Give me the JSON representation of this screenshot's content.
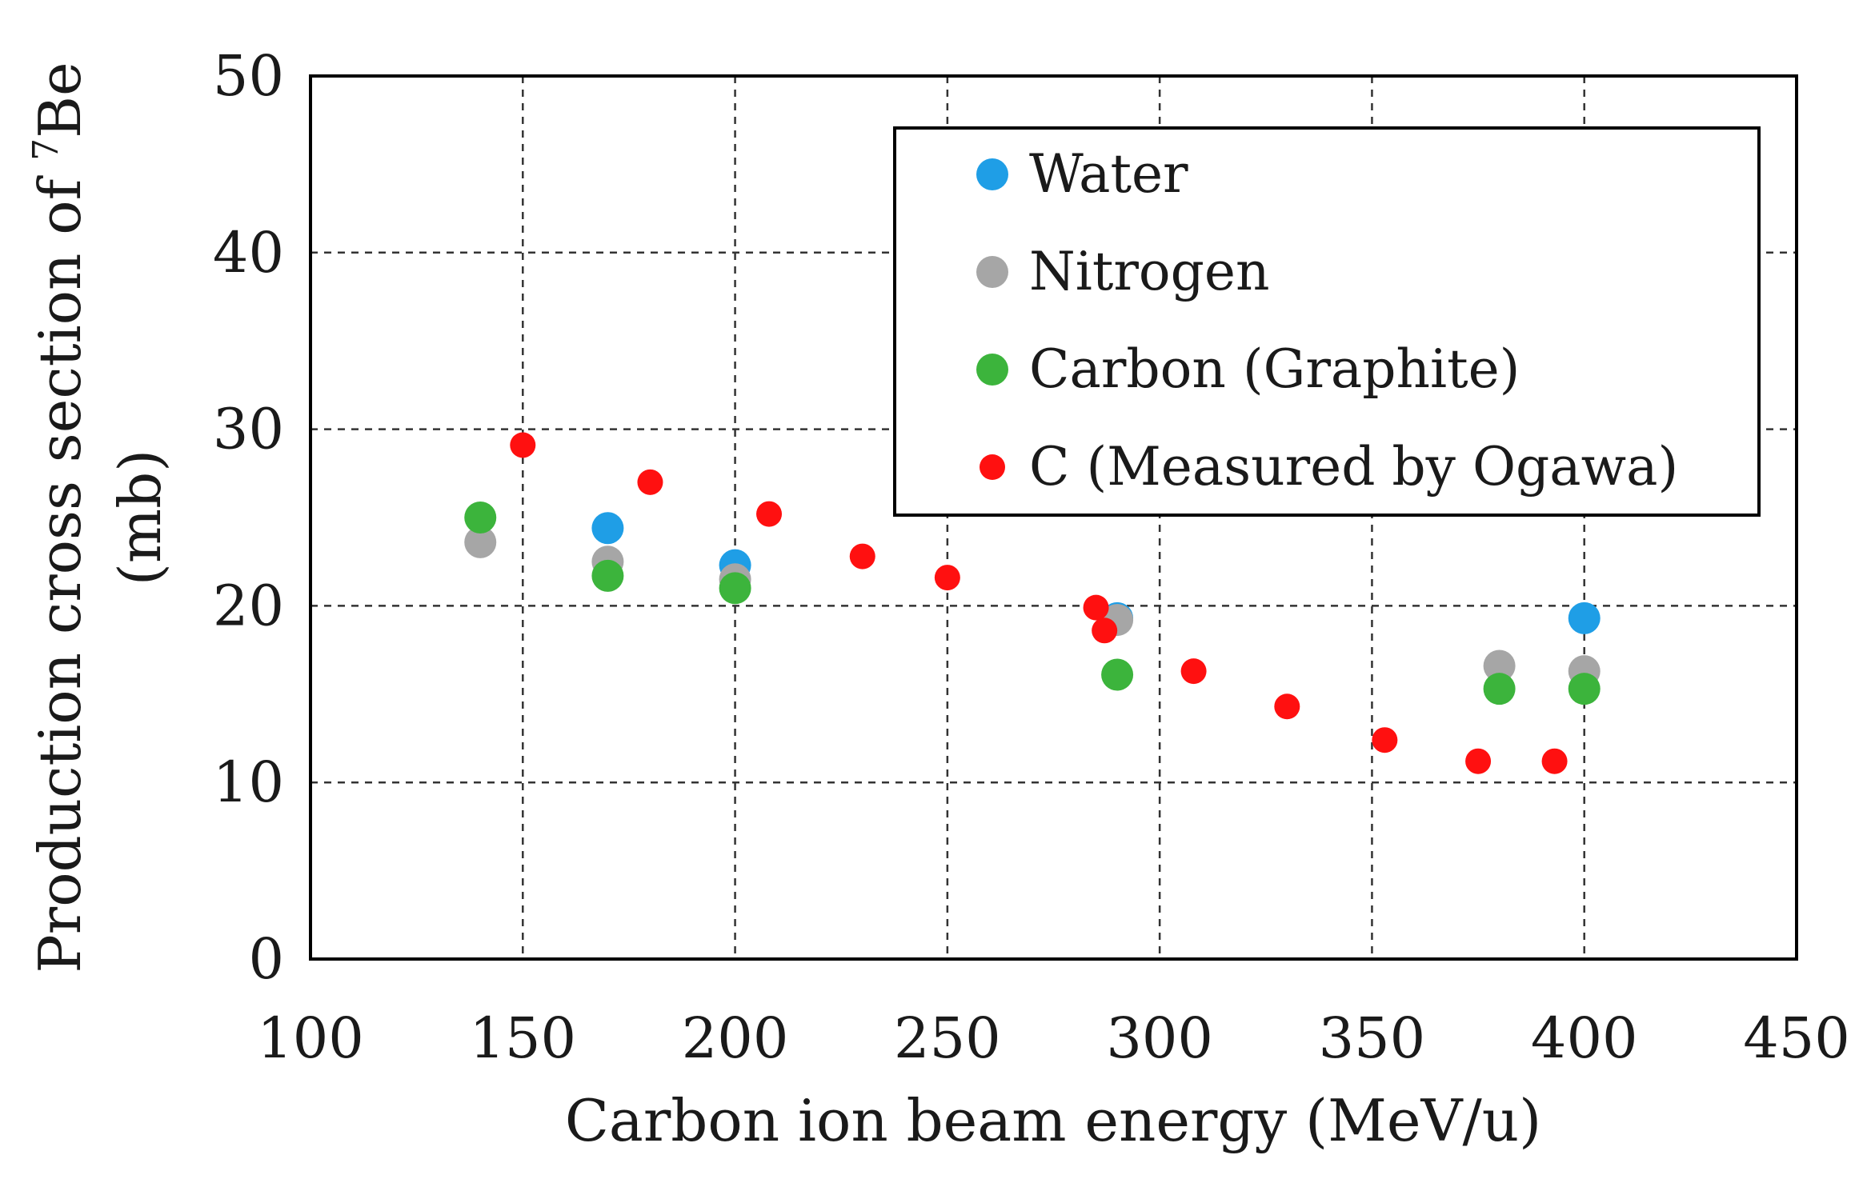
{
  "chart_data": {
    "type": "scatter",
    "title": "",
    "xlabel": "Carbon ion beam energy (MeV/u)",
    "ylabel_line1_prefix": "Production cross section of ",
    "ylabel_line1_sup": "7",
    "ylabel_line1_suffix": "Be",
    "ylabel_line2": "(mb)",
    "xlim": [
      100,
      450
    ],
    "ylim": [
      0,
      50
    ],
    "xticks": [
      100,
      150,
      200,
      250,
      300,
      350,
      400,
      450
    ],
    "yticks": [
      0,
      10,
      20,
      30,
      40,
      50
    ],
    "xtick_labels": [
      "100",
      "150",
      "200",
      "250",
      "300",
      "350",
      "400",
      "450"
    ],
    "ytick_labels": [
      "0",
      "10",
      "20",
      "30",
      "40",
      "50"
    ],
    "grid": true,
    "legend_position": "top-right",
    "series": [
      {
        "name": "Water",
        "color": "#1f9ee6",
        "marker": "large",
        "points": [
          [
            170,
            24.4
          ],
          [
            200,
            22.3
          ],
          [
            290,
            19.3
          ],
          [
            400,
            19.3
          ]
        ]
      },
      {
        "name": "Nitrogen",
        "color": "#a6a6a6",
        "marker": "large",
        "points": [
          [
            140,
            23.6
          ],
          [
            170,
            22.5
          ],
          [
            200,
            21.5
          ],
          [
            290,
            19.2
          ],
          [
            380,
            16.6
          ],
          [
            400,
            16.3
          ]
        ]
      },
      {
        "name": "Carbon (Graphite)",
        "color": "#3cb43c",
        "marker": "large",
        "points": [
          [
            140,
            25.0
          ],
          [
            170,
            21.7
          ],
          [
            200,
            21.0
          ],
          [
            290,
            16.1
          ],
          [
            380,
            15.3
          ],
          [
            400,
            15.3
          ]
        ]
      },
      {
        "name": "C (Measured by Ogawa)",
        "color": "#ff1010",
        "marker": "small",
        "points": [
          [
            150,
            29.1
          ],
          [
            180,
            27.0
          ],
          [
            208,
            25.2
          ],
          [
            230,
            22.8
          ],
          [
            250,
            21.6
          ],
          [
            285,
            19.9
          ],
          [
            287,
            18.6
          ],
          [
            308,
            16.3
          ],
          [
            330,
            14.3
          ],
          [
            353,
            12.4
          ],
          [
            375,
            11.2
          ],
          [
            393,
            11.2
          ]
        ]
      }
    ]
  }
}
